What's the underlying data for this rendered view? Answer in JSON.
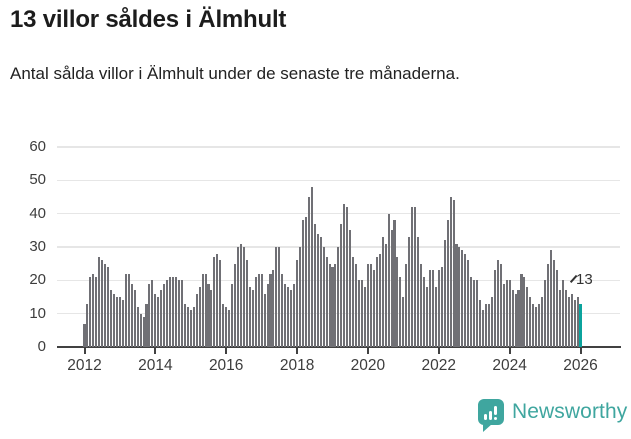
{
  "header": {
    "title": "13 villor såldes i Älmhult",
    "subtitle": "Antal sålda villor i Älmhult under de senaste tre månaderna."
  },
  "chart_data": {
    "type": "bar",
    "title": "13 villor såldes i Älmhult",
    "subtitle": "Antal sålda villor i Älmhult under de senaste tre månaderna.",
    "frequency": "monthly",
    "x_start": "2012-01",
    "x_end": "2026-01",
    "xlabel": "",
    "ylabel": "",
    "ylim": [
      0,
      60
    ],
    "yticks": [
      0,
      10,
      20,
      30,
      40,
      50,
      60
    ],
    "xticks": [
      2012,
      2014,
      2016,
      2018,
      2020,
      2022,
      2024,
      2026
    ],
    "grid": "horizontal",
    "legend": "none",
    "bar_color": "#707075",
    "highlight_color": "#0ba39d",
    "highlight": {
      "month": "2026-01",
      "value": 13,
      "label": "13"
    },
    "values_by_year": {
      "2012": [
        7,
        13,
        21,
        22,
        21,
        27,
        26,
        25,
        24,
        17,
        16,
        15
      ],
      "2013": [
        15,
        14,
        22,
        22,
        19,
        17,
        12,
        10,
        9,
        13,
        19,
        20
      ],
      "2014": [
        16,
        15,
        17,
        19,
        20,
        21,
        21,
        21,
        20,
        20,
        13,
        12
      ],
      "2015": [
        11,
        12,
        16,
        18,
        22,
        22,
        19,
        17,
        27,
        28,
        26,
        13
      ],
      "2016": [
        12,
        11,
        19,
        25,
        30,
        31,
        30,
        26,
        18,
        17,
        21,
        22
      ],
      "2017": [
        22,
        16,
        19,
        22,
        23,
        30,
        30,
        22,
        19,
        18,
        17,
        19
      ],
      "2018": [
        26,
        30,
        38,
        39,
        45,
        48,
        37,
        34,
        33,
        30,
        27,
        25
      ],
      "2019": [
        24,
        25,
        30,
        37,
        43,
        42,
        35,
        27,
        25,
        20,
        20,
        18
      ],
      "2020": [
        25,
        25,
        23,
        27,
        28,
        33,
        31,
        40,
        35,
        38,
        27,
        21
      ],
      "2021": [
        15,
        25,
        33,
        42,
        42,
        33,
        25,
        21,
        18,
        23,
        23,
        18
      ],
      "2022": [
        23,
        24,
        32,
        38,
        45,
        44,
        31,
        30,
        29,
        28,
        26,
        21
      ],
      "2023": [
        20,
        20,
        14,
        11,
        13,
        13,
        15,
        23,
        26,
        25,
        19,
        20
      ],
      "2024": [
        20,
        17,
        16,
        17,
        22,
        21,
        18,
        15,
        13,
        12,
        13,
        15
      ],
      "2025": [
        20,
        25,
        29,
        26,
        23,
        17,
        20,
        17,
        15,
        16,
        14,
        15
      ],
      "2026": [
        13
      ]
    }
  },
  "footer": {
    "brand": "Newsworthy"
  },
  "colors": {
    "bar_gray": "#707075",
    "accent_teal": "#0ba39d",
    "logo_teal": "#3fa69f",
    "grid": "#e6e6e6",
    "axis": "#414141"
  }
}
